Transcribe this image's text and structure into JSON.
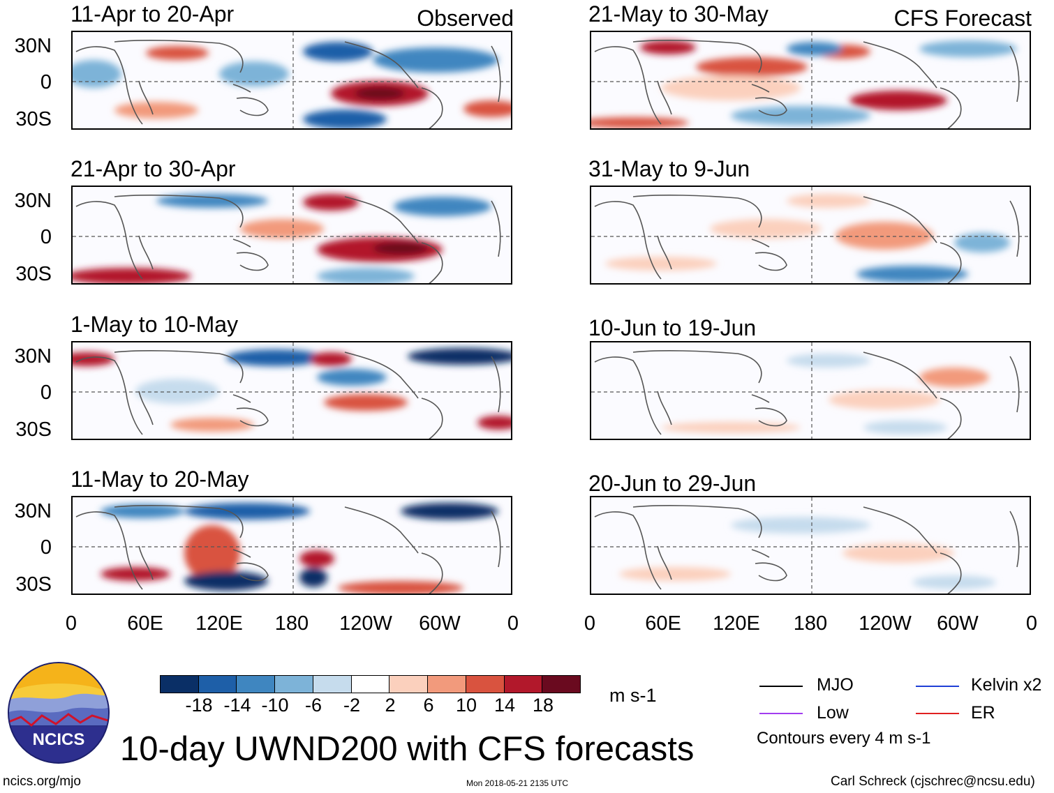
{
  "figure": {
    "title": "10-day UWND200 with CFS forecasts",
    "observed_label": "Observed",
    "forecast_label": "CFS Forecast",
    "latitude_labels": [
      "30N",
      "0",
      "30S"
    ],
    "longitude_labels": [
      "0",
      "60E",
      "120E",
      "180",
      "120W",
      "60W",
      "0"
    ]
  },
  "panels": {
    "observed": [
      {
        "period": "11-Apr to 20-Apr"
      },
      {
        "period": "21-Apr to 30-Apr"
      },
      {
        "period": "1-May to 10-May"
      },
      {
        "period": "11-May to 20-May"
      }
    ],
    "forecast": [
      {
        "period": "21-May to 30-May"
      },
      {
        "period": "31-May to 9-Jun"
      },
      {
        "period": "10-Jun to 19-Jun"
      },
      {
        "period": "20-Jun to 29-Jun"
      }
    ]
  },
  "colorbar": {
    "unit": "m s-1",
    "tick_labels": [
      "-18",
      "-14",
      "-10",
      "-6",
      "-2",
      "2",
      "6",
      "10",
      "14",
      "18"
    ],
    "colors": [
      "#0a2f66",
      "#1e5fa8",
      "#3f86c0",
      "#7db3d8",
      "#c6dced",
      "#ffffff",
      "#fbd0bd",
      "#f29a7c",
      "#d9533f",
      "#b2182b",
      "#6a0a1f"
    ]
  },
  "legend": {
    "items": [
      {
        "label": "MJO",
        "color": "#000000"
      },
      {
        "label": "Kelvin x2",
        "color": "#1f3fd6"
      },
      {
        "label": "Low",
        "color": "#a23cf0"
      },
      {
        "label": "ER",
        "color": "#e02020"
      }
    ],
    "contour_note": "Contours every 4 m s-1"
  },
  "logo": {
    "text": "NCICS"
  },
  "footer": {
    "website": "ncics.org/mjo",
    "timestamp": "Mon 2018-05-21 2135 UTC",
    "credit": "Carl Schreck (cjschrec@ncsu.edu)"
  }
}
